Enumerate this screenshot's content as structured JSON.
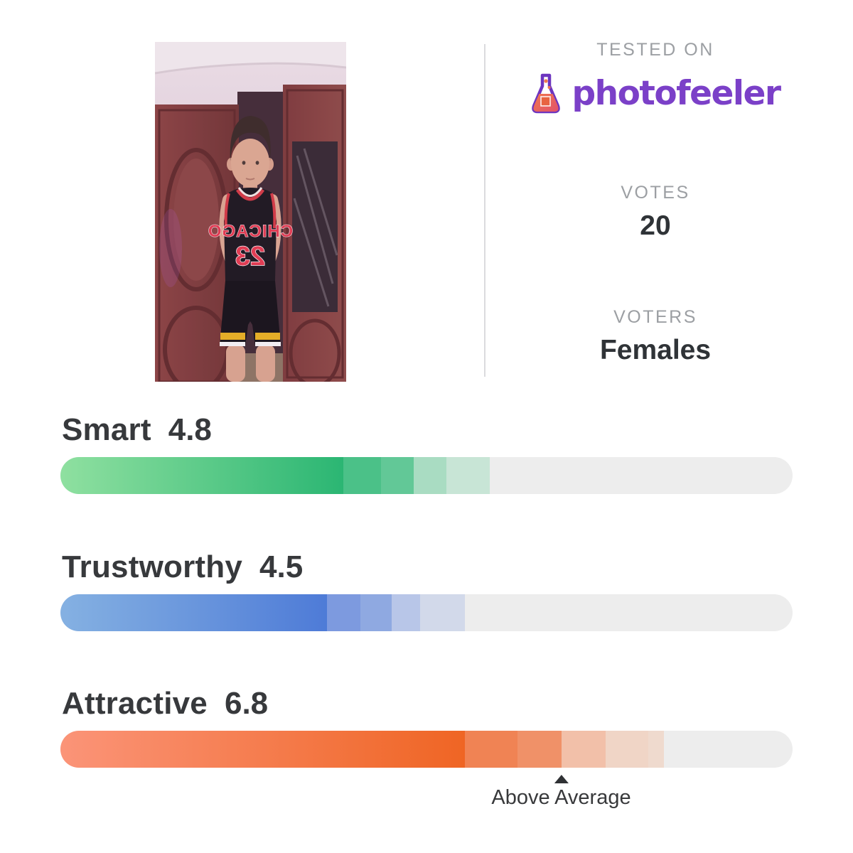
{
  "header": {
    "tested_on_label": "TESTED ON",
    "brand_name": "photofeeler",
    "brand_color": "#7b40c8",
    "flask_icon_colors": {
      "outline": "#6d35bf",
      "liquid": "#f0784e"
    },
    "votes_label": "VOTES",
    "votes_value": "20",
    "voters_label": "VOTERS",
    "voters_value": "Females"
  },
  "photo": {
    "jersey_text_line1": "CHICAGO",
    "jersey_text_line2": "23"
  },
  "scores": [
    {
      "label": "Smart",
      "value": "4.8",
      "bar": {
        "track_color": "#ededed",
        "gradient_from": "#8fe0a0",
        "gradient_to": "#2bb673",
        "solid_pct": 38.6,
        "steps": [
          {
            "pct": 5.2,
            "color": "#4bc188"
          },
          {
            "pct": 4.5,
            "color": "#62c897"
          },
          {
            "pct": 4.4,
            "color": "#a9dcc2"
          },
          {
            "pct": 5.9,
            "color": "#c8e5d6"
          }
        ]
      }
    },
    {
      "label": "Trustworthy",
      "value": "4.5",
      "bar": {
        "track_color": "#ededed",
        "gradient_from": "#85b1e2",
        "gradient_to": "#4e7bd7",
        "solid_pct": 36.4,
        "steps": [
          {
            "pct": 4.6,
            "color": "#7d9adf"
          },
          {
            "pct": 4.2,
            "color": "#8fa9e1"
          },
          {
            "pct": 3.9,
            "color": "#b8c6e8"
          },
          {
            "pct": 6.1,
            "color": "#d2d9ea"
          }
        ]
      }
    },
    {
      "label": "Attractive",
      "value": "6.8",
      "bar": {
        "track_color": "#ededed",
        "gradient_from": "#fb9478",
        "gradient_to": "#ef6524",
        "solid_pct": 55.2,
        "steps": [
          {
            "pct": 7.2,
            "color": "#f08354"
          },
          {
            "pct": 6.0,
            "color": "#f09168"
          },
          {
            "pct": 6.1,
            "color": "#f2c0a9"
          },
          {
            "pct": 5.8,
            "color": "#f0d5c6"
          },
          {
            "pct": 2.1,
            "color": "#efdace"
          }
        ]
      },
      "marker": {
        "label": "Above Average",
        "position_pct": 68.4
      }
    }
  ],
  "chart_data": {
    "type": "bar",
    "categories": [
      "Smart",
      "Trustworthy",
      "Attractive"
    ],
    "values": [
      4.8,
      4.5,
      6.8
    ],
    "scale": [
      0,
      10
    ],
    "series_colors": [
      "#2bb673",
      "#4e7bd7",
      "#ef6524"
    ],
    "annotations": [
      {
        "category": "Attractive",
        "label": "Above Average",
        "at_value": 6.8
      }
    ],
    "votes": 20,
    "voters": "Females"
  }
}
